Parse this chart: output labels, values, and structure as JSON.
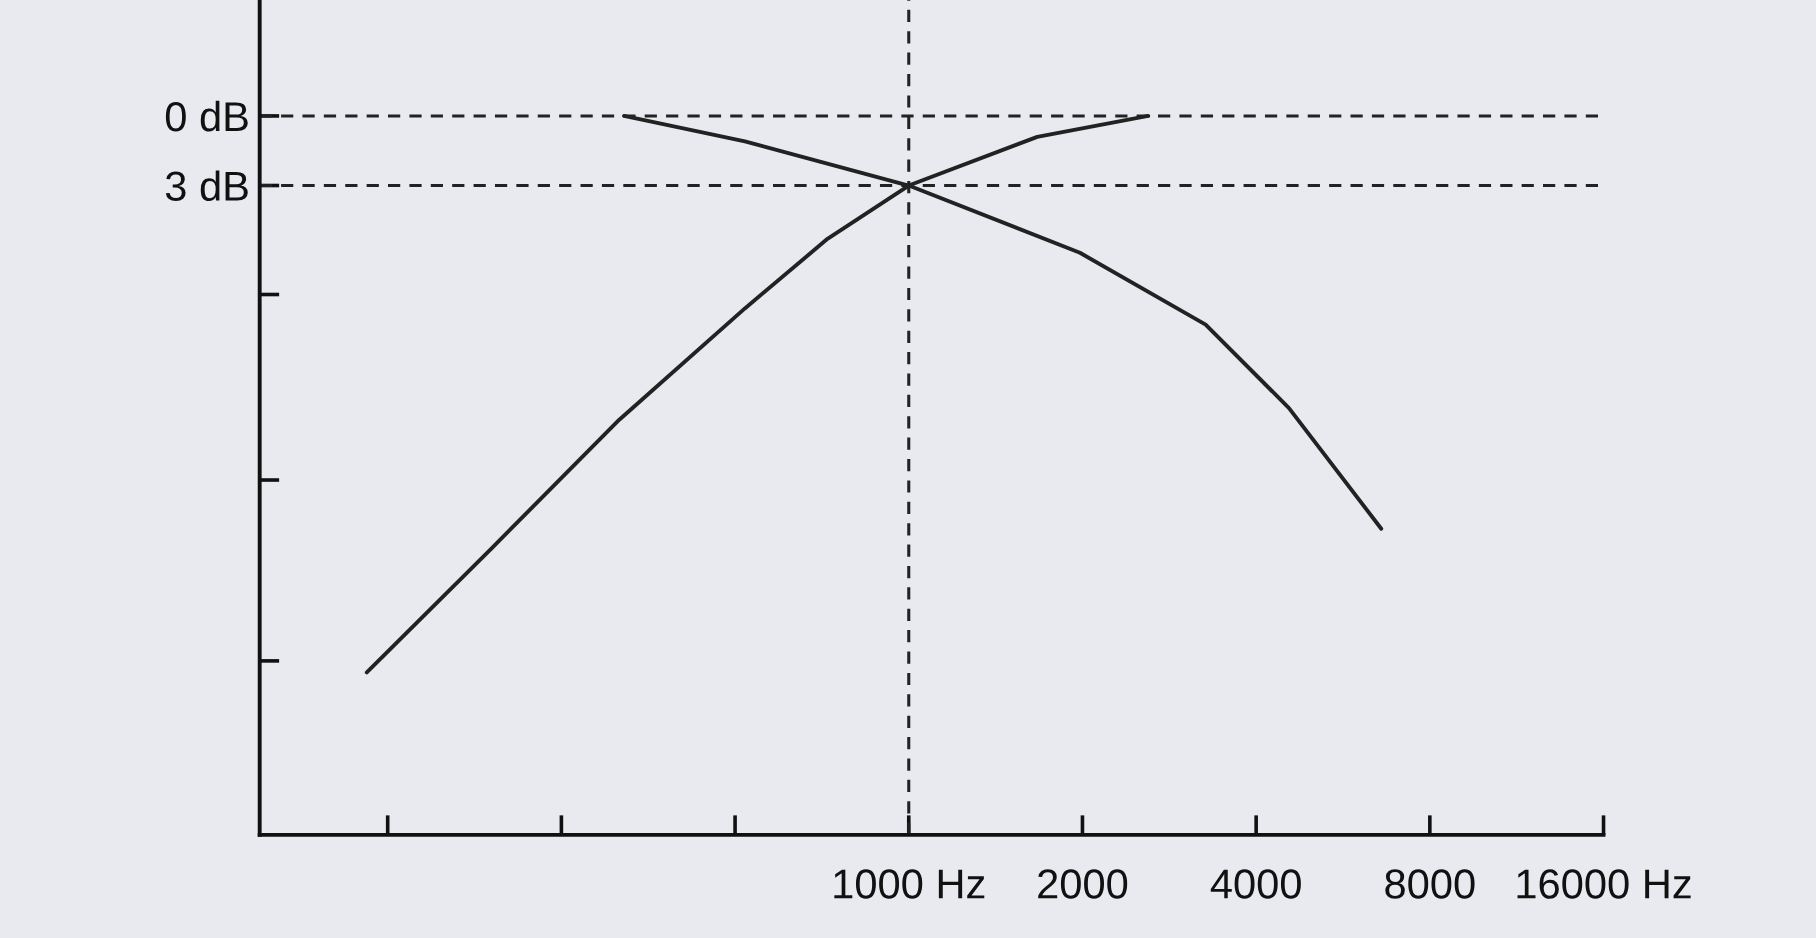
{
  "chart_data": {
    "type": "line",
    "log": "x",
    "xlim": [
      75,
      16000
    ],
    "xticks": [
      {
        "value": 125,
        "label": null
      },
      {
        "value": 250,
        "label": null
      },
      {
        "value": 500,
        "label": null
      },
      {
        "value": 1000,
        "label": "1000 Hz"
      },
      2000,
      4000,
      8000,
      {
        "value": 16000,
        "label": "16000 Hz"
      }
    ],
    "ylim": [
      31,
      -5
    ],
    "yticks": [
      {
        "value": 0,
        "label": "0 dB"
      },
      {
        "value": 3,
        "label": "3 dB"
      },
      {
        "value": 7.7,
        "label": null
      },
      {
        "value": 15.7,
        "label": null
      },
      {
        "value": 23.5,
        "label": null
      }
    ],
    "series": [
      {
        "color": "#222222",
        "x": [
          321,
          520,
          1000,
          1980,
          3270,
          4560,
          6590
        ],
        "values": [
          0,
          1.1,
          3,
          5.9,
          9.0,
          12.6,
          17.8
        ]
      },
      {
        "color": "#222222",
        "x": [
          115,
          190,
          315,
          520,
          723,
          1000,
          1670,
          2600
        ],
        "values": [
          24,
          18.6,
          13.1,
          8.3,
          5.3,
          3,
          0.9,
          0
        ]
      }
    ],
    "ref_lines": [
      {
        "axis": "y",
        "value": 0,
        "line_style": "dashed",
        "color": "#222222"
      },
      {
        "axis": "y",
        "value": 3,
        "line_style": "dashed",
        "color": "#222222"
      },
      {
        "axis": "x",
        "value": 1000,
        "line_style": "dashed",
        "color": "#222222"
      }
    ],
    "grid": false,
    "legend": false,
    "marker": "none",
    "line_style": "solid"
  }
}
